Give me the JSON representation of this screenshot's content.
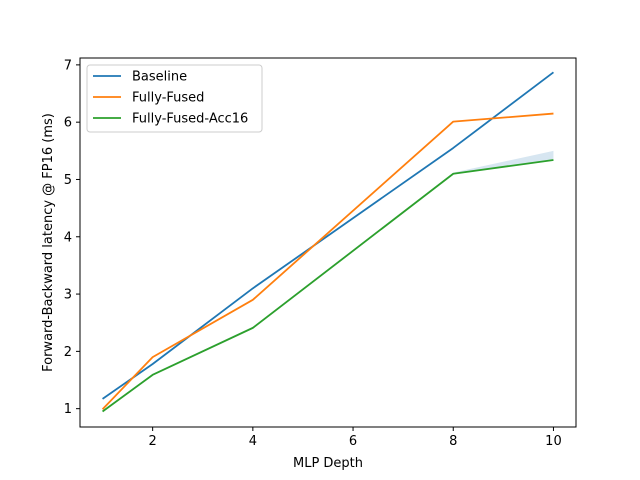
{
  "chart_data": {
    "type": "line",
    "title": "",
    "xlabel": "MLP Depth",
    "ylabel": "Forward-Backward latency @ FP16 (ms)",
    "x": [
      1,
      2,
      4,
      8,
      10
    ],
    "xticks": [
      2,
      4,
      6,
      8,
      10
    ],
    "yticks": [
      1,
      2,
      3,
      4,
      5,
      6,
      7
    ],
    "xlim": [
      0.55,
      10.45
    ],
    "ylim": [
      0.68,
      7.12
    ],
    "grid": false,
    "legend_position": "upper-left",
    "series": [
      {
        "name": "Baseline",
        "color": "#1f77b4",
        "values": [
          1.17,
          1.78,
          3.1,
          5.55,
          6.87
        ]
      },
      {
        "name": "Fully-Fused",
        "color": "#ff7f0e",
        "values": [
          0.99,
          1.9,
          2.9,
          6.01,
          6.15
        ]
      },
      {
        "name": "Fully-Fused-Acc16",
        "color": "#2ca02c",
        "values": [
          0.95,
          1.59,
          2.41,
          5.1,
          5.34
        ],
        "band_upper": [
          0.97,
          1.61,
          2.43,
          5.12,
          5.5
        ],
        "band_lower": [
          0.94,
          1.58,
          2.4,
          5.09,
          5.33
        ]
      }
    ]
  }
}
